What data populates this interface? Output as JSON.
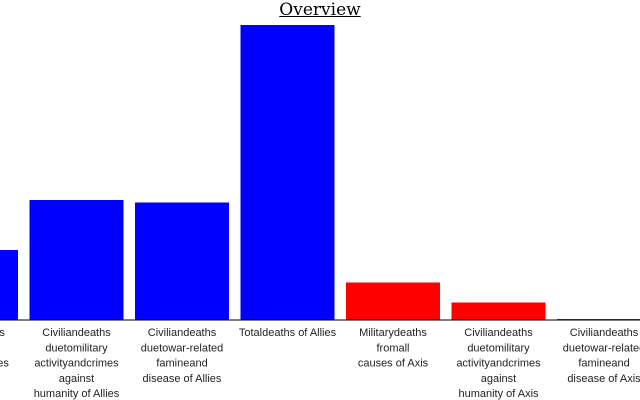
{
  "chart_data": {
    "type": "bar",
    "title": "Overview",
    "xlabel": "",
    "ylabel": "",
    "ylim": [
      0,
      60
    ],
    "grid": false,
    "legend": "none",
    "colors": {
      "allies": "#0000ff",
      "axis": "#ff0000"
    },
    "categories": [
      [
        "Militarydeaths",
        "fromall",
        "causes of Allies"
      ],
      [
        "Civiliandeaths",
        "duetomilitary",
        "activityandcrimes",
        "against",
        "humanity of Allies"
      ],
      [
        "Civiliandeaths",
        "duetowar-related",
        "famineand",
        "disease of Allies"
      ],
      [
        "Totaldeaths of Allies"
      ],
      [
        "Militarydeaths",
        "fromall",
        "causes of Axis"
      ],
      [
        "Civiliandeaths",
        "duetomilitary",
        "activityandcrimes",
        "against",
        "humanity of Axis"
      ],
      [
        "Civiliandeaths",
        "duetowar-related",
        "famineand",
        "disease of Axis"
      ]
    ],
    "groups": [
      "allies",
      "allies",
      "allies",
      "allies",
      "axis",
      "axis",
      "axis"
    ],
    "values": [
      14,
      24,
      23.5,
      59,
      7.5,
      3.5,
      0.2
    ]
  }
}
